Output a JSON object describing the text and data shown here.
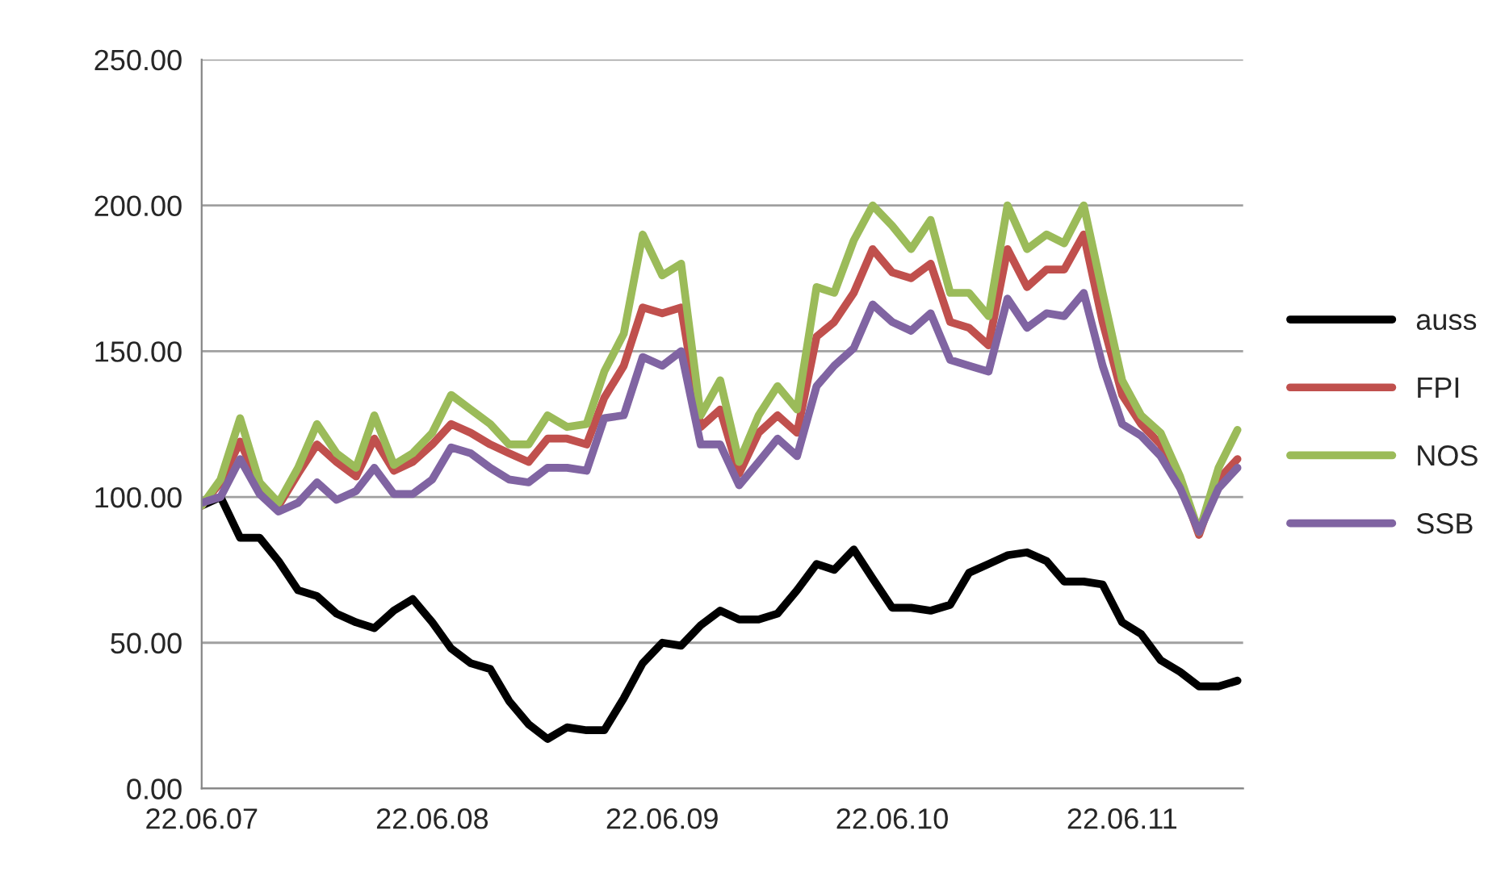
{
  "chart_data": {
    "type": "line",
    "x": [
      "2007-06-22",
      "2007-07-22",
      "2007-08-22",
      "2007-09-22",
      "2007-10-22",
      "2007-11-22",
      "2007-12-22",
      "2008-01-22",
      "2008-02-22",
      "2008-03-22",
      "2008-04-22",
      "2008-05-22",
      "2008-06-22",
      "2008-07-22",
      "2008-08-22",
      "2008-09-22",
      "2008-10-22",
      "2008-11-22",
      "2008-12-22",
      "2009-01-22",
      "2009-02-22",
      "2009-03-22",
      "2009-04-22",
      "2009-05-22",
      "2009-06-22",
      "2009-07-22",
      "2009-08-22",
      "2009-09-22",
      "2009-10-22",
      "2009-11-22",
      "2009-12-22",
      "2010-01-22",
      "2010-02-22",
      "2010-03-22",
      "2010-04-22",
      "2010-05-22",
      "2010-06-22",
      "2010-07-22",
      "2010-08-22",
      "2010-09-22",
      "2010-10-22",
      "2010-11-22",
      "2010-12-22",
      "2011-01-22",
      "2011-02-22",
      "2011-03-22",
      "2011-04-22",
      "2011-05-22",
      "2011-06-22",
      "2011-07-22",
      "2011-08-22",
      "2011-09-22",
      "2011-10-22",
      "2011-11-22",
      "2011-12-22"
    ],
    "series": [
      {
        "name": "auss",
        "color": "#000000",
        "values": [
          97,
          100,
          86,
          86,
          78,
          68,
          66,
          60,
          57,
          55,
          61,
          65,
          57,
          48,
          43,
          41,
          30,
          22,
          17,
          21,
          20,
          20,
          31,
          43,
          50,
          49,
          56,
          61,
          58,
          58,
          60,
          68,
          77,
          75,
          82,
          72,
          62,
          62,
          61,
          63,
          74,
          77,
          80,
          81,
          78,
          71,
          71,
          70,
          57,
          53,
          44,
          40,
          35,
          35,
          37
        ]
      },
      {
        "name": "FPI",
        "color": "#c0504d",
        "values": [
          97,
          105,
          119,
          104,
          97,
          108,
          118,
          112,
          107,
          120,
          109,
          112,
          118,
          125,
          122,
          118,
          115,
          112,
          120,
          120,
          118,
          134,
          145,
          165,
          163,
          165,
          124,
          130,
          108,
          122,
          128,
          122,
          155,
          160,
          170,
          185,
          177,
          175,
          180,
          160,
          158,
          152,
          185,
          172,
          178,
          178,
          190,
          160,
          135,
          125,
          118,
          105,
          87,
          106,
          113
        ]
      },
      {
        "name": "NOS",
        "color": "#9bbb59",
        "values": [
          97,
          106,
          127,
          105,
          98,
          110,
          125,
          115,
          110,
          128,
          111,
          115,
          122,
          135,
          130,
          125,
          118,
          118,
          128,
          124,
          125,
          143,
          156,
          190,
          176,
          180,
          128,
          140,
          112,
          128,
          138,
          130,
          172,
          170,
          188,
          200,
          193,
          185,
          195,
          170,
          170,
          162,
          200,
          185,
          190,
          187,
          200,
          170,
          140,
          128,
          122,
          107,
          88,
          110,
          123
        ]
      },
      {
        "name": "SSB",
        "color": "#8064a2",
        "values": [
          98,
          100,
          113,
          101,
          95,
          98,
          105,
          99,
          102,
          110,
          101,
          101,
          106,
          117,
          115,
          110,
          106,
          105,
          110,
          110,
          109,
          127,
          128,
          148,
          145,
          150,
          118,
          118,
          104,
          112,
          120,
          114,
          138,
          145,
          151,
          166,
          160,
          157,
          163,
          147,
          145,
          143,
          168,
          158,
          163,
          162,
          170,
          145,
          125,
          121,
          114,
          103,
          88,
          103,
          110
        ]
      }
    ],
    "xlim": [
      "2007-06-22",
      "2011-12-31"
    ],
    "xticks": [
      {
        "value": "2007-06-22",
        "label": "22.06.07"
      },
      {
        "value": "2008-06-22",
        "label": "22.06.08"
      },
      {
        "value": "2009-06-22",
        "label": "22.06.09"
      },
      {
        "value": "2010-06-22",
        "label": "22.06.10"
      },
      {
        "value": "2011-06-22",
        "label": "22.06.11"
      }
    ],
    "ylim": [
      0,
      250
    ],
    "yticks": [
      {
        "value": 0,
        "label": "0.00"
      },
      {
        "value": 50,
        "label": "50.00"
      },
      {
        "value": 100,
        "label": "100.00"
      },
      {
        "value": 150,
        "label": "150.00"
      },
      {
        "value": 200,
        "label": "200.00"
      },
      {
        "value": 250,
        "label": "250.00"
      }
    ],
    "grid": "y",
    "legend": "right",
    "marker": "none",
    "line_style": "solid"
  }
}
